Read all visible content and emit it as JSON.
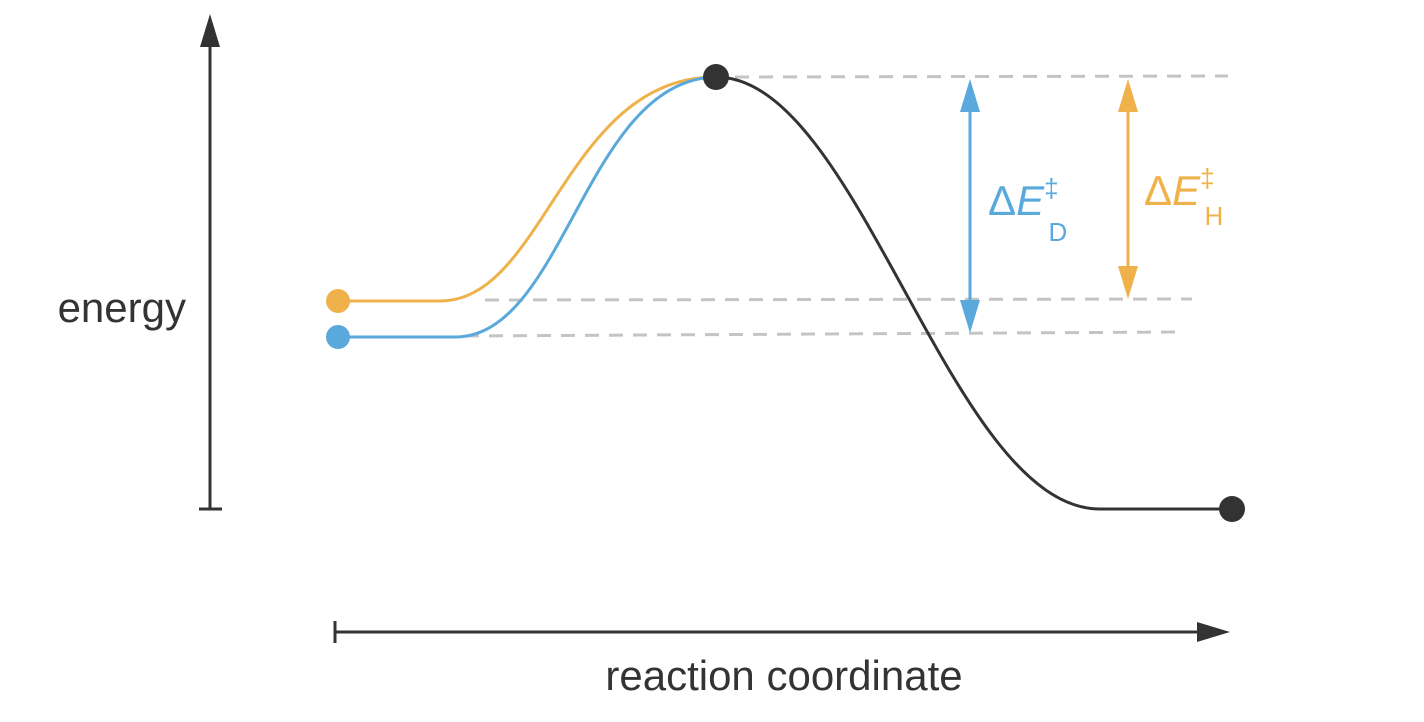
{
  "axes": {
    "y_label": "energy",
    "x_label": "reaction coordinate"
  },
  "annotations": [
    {
      "delta": "Δ",
      "variable": "E",
      "superscript": "‡",
      "subscript": "D"
    },
    {
      "delta": "Δ",
      "variable": "E",
      "superscript": "‡",
      "subscript": "H"
    }
  ]
}
